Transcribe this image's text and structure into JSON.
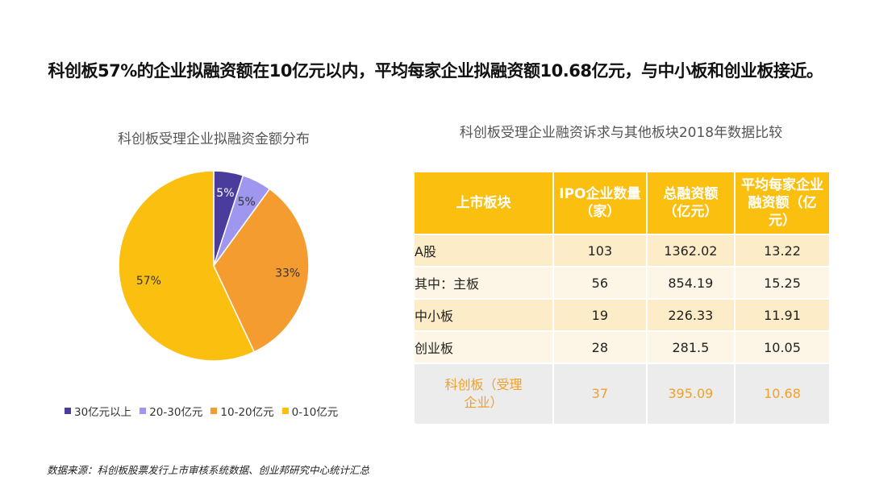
{
  "headline": "科创板57%的企业拟融资额在10亿元以内，平均每家企业拟融资额10.68亿元，与中小板和创业板接近。",
  "source_note": "数据来源：科创板股票发行上市审核系统数据、创业邦研究中心统计汇总",
  "chart_data": [
    {
      "type": "pie",
      "title": "科创板受理企业拟融资金额分布",
      "legend_position": "bottom",
      "slices": [
        {
          "label": "30亿元以上",
          "value": 5,
          "value_label": "5%",
          "color": "#4a3c9c"
        },
        {
          "label": "20-30亿元",
          "value": 5,
          "value_label": "5%",
          "color": "#9f96f0"
        },
        {
          "label": "10-20亿元",
          "value": 33,
          "value_label": "33%",
          "color": "#f59c30"
        },
        {
          "label": "0-10亿元",
          "value": 57,
          "value_label": "57%",
          "color": "#fbbf10"
        }
      ]
    },
    {
      "type": "table",
      "title": "科创板受理企业融资诉求与其他板块2018年数据比较",
      "columns": [
        "上市板块",
        "IPO企业数量（家）",
        "总融资额（亿元）",
        "平均每家企业融资额（亿元）"
      ],
      "rows": [
        {
          "name": "A股",
          "count": "103",
          "total": "1362.02",
          "avg": "13.22"
        },
        {
          "name": "其中：主板",
          "count": "56",
          "total": "854.19",
          "avg": "15.25"
        },
        {
          "name": "中小板",
          "count": "19",
          "total": "226.33",
          "avg": "11.91"
        },
        {
          "name": "创业板",
          "count": "28",
          "total": "281.5",
          "avg": "10.05"
        },
        {
          "name": "科创板（受理企业）",
          "count": "37",
          "total": "395.09",
          "avg": "10.68"
        }
      ]
    }
  ],
  "colors": {
    "header_bg": "#fbbf10",
    "row_odd": "#fdecc8",
    "row_even": "#fdf6e6",
    "highlight_row_bg": "#ececec",
    "highlight_text": "#f0a02a"
  }
}
